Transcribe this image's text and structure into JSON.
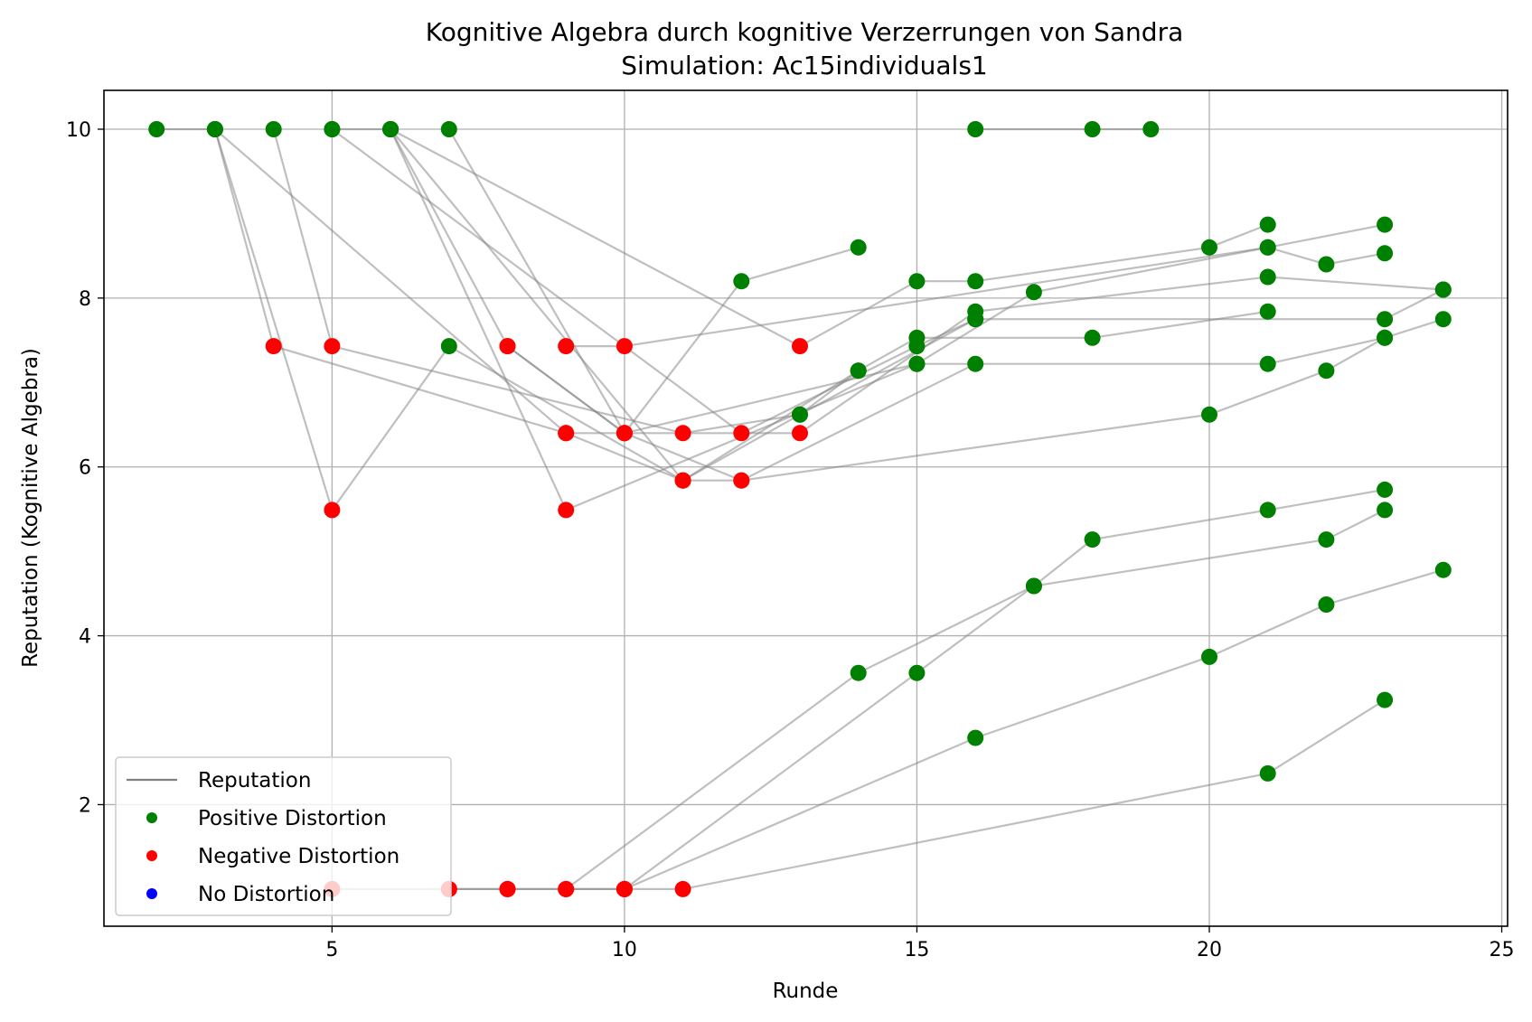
{
  "chart_data": {
    "type": "scatter",
    "title": "Kognitive Algebra durch kognitive Verzerrungen von Sandra",
    "subtitle": "Simulation: Ac15individuals1",
    "xlabel": "Runde",
    "ylabel": "Reputation (Kognitive Algebra)",
    "xlim": [
      1.1,
      25.1
    ],
    "ylim": [
      0.56,
      10.46
    ],
    "xticks": [
      5,
      10,
      15,
      20,
      25
    ],
    "yticks": [
      2,
      4,
      6,
      8,
      10
    ],
    "grid": true,
    "legend_position": "lower-left",
    "colors": {
      "reputation": "#808080",
      "positive": "#008000",
      "negative": "#ff0000",
      "none": "#0000ff",
      "grid": "#b0b0b0"
    },
    "legend": [
      {
        "label": "Reputation",
        "kind": "line",
        "color": "#808080"
      },
      {
        "label": "Positive Distortion",
        "kind": "dot",
        "color": "#008000"
      },
      {
        "label": "Negative Distortion",
        "kind": "dot",
        "color": "#ff0000"
      },
      {
        "label": "No Distortion",
        "kind": "dot",
        "color": "#0000ff"
      }
    ],
    "series": [
      {
        "points": [
          [
            2,
            10,
            "pos"
          ],
          [
            3,
            10,
            "pos"
          ],
          [
            4,
            7.43,
            "neg"
          ],
          [
            9,
            6.4,
            "neg"
          ],
          [
            11,
            5.84,
            "neg"
          ],
          [
            13,
            6.62,
            "pos"
          ],
          [
            14,
            7.14,
            "pos"
          ]
        ]
      },
      {
        "points": [
          [
            3,
            10,
            "pos"
          ],
          [
            5,
            5.49,
            "neg"
          ],
          [
            7,
            7.43,
            "pos"
          ],
          [
            11,
            5.84,
            "neg"
          ],
          [
            14,
            7.14,
            "pos"
          ],
          [
            15,
            7.53,
            "pos"
          ],
          [
            18,
            7.53,
            "pos"
          ],
          [
            21,
            7.84,
            "pos"
          ]
        ]
      },
      {
        "points": [
          [
            3,
            10,
            "pos"
          ],
          [
            9,
            6.4,
            "neg"
          ],
          [
            13,
            6.4,
            "neg"
          ],
          [
            16,
            7.84,
            "pos"
          ],
          [
            21,
            8.25,
            "pos"
          ],
          [
            24,
            8.1,
            "pos"
          ]
        ]
      },
      {
        "points": [
          [
            4,
            10,
            "pos"
          ],
          [
            5,
            7.43,
            "neg"
          ],
          [
            11,
            6.4,
            "neg"
          ],
          [
            13,
            6.62,
            "pos"
          ],
          [
            16,
            7.75,
            "pos"
          ],
          [
            23,
            7.75,
            "pos"
          ],
          [
            24,
            8.1,
            "pos"
          ]
        ]
      },
      {
        "points": [
          [
            5,
            10,
            "pos"
          ],
          [
            12,
            6.4,
            "neg"
          ],
          [
            15,
            7.43,
            "pos"
          ],
          [
            16,
            7.75,
            "pos"
          ]
        ]
      },
      {
        "points": [
          [
            5,
            10,
            "pos"
          ],
          [
            6,
            10,
            "pos"
          ],
          [
            13,
            7.43,
            "neg"
          ],
          [
            15,
            8.2,
            "pos"
          ],
          [
            16,
            8.2,
            "pos"
          ],
          [
            20,
            8.6,
            "pos"
          ],
          [
            21,
            8.87,
            "pos"
          ]
        ]
      },
      {
        "points": [
          [
            6,
            10,
            "pos"
          ],
          [
            8,
            7.43,
            "neg"
          ],
          [
            10,
            6.4,
            "neg"
          ],
          [
            12,
            8.2,
            "pos"
          ],
          [
            14,
            8.6,
            "pos"
          ]
        ]
      },
      {
        "points": [
          [
            6,
            10,
            "pos"
          ],
          [
            9,
            5.49,
            "neg"
          ],
          [
            15,
            7.22,
            "pos"
          ],
          [
            21,
            7.22,
            "pos"
          ],
          [
            23,
            7.53,
            "pos"
          ],
          [
            24,
            7.75,
            "pos"
          ]
        ]
      },
      {
        "points": [
          [
            6,
            10,
            "pos"
          ],
          [
            11,
            5.84,
            "neg"
          ],
          [
            12,
            5.84,
            "neg"
          ],
          [
            20,
            6.62,
            "pos"
          ],
          [
            22,
            7.14,
            "pos"
          ],
          [
            23,
            7.53,
            "pos"
          ]
        ]
      },
      {
        "points": [
          [
            7,
            10,
            "pos"
          ],
          [
            10,
            6.4,
            "neg"
          ],
          [
            12,
            5.84,
            "neg"
          ],
          [
            16,
            7.22,
            "pos"
          ]
        ]
      },
      {
        "points": [
          [
            8,
            7.43,
            "neg"
          ],
          [
            10,
            6.4,
            "neg"
          ],
          [
            15,
            7.22,
            "pos"
          ],
          [
            17,
            8.07,
            "pos"
          ],
          [
            21,
            8.6,
            "pos"
          ],
          [
            23,
            8.87,
            "pos"
          ]
        ]
      },
      {
        "points": [
          [
            9,
            7.43,
            "neg"
          ],
          [
            10,
            7.43,
            "neg"
          ],
          [
            21,
            8.6,
            "pos"
          ],
          [
            22,
            8.4,
            "pos"
          ],
          [
            23,
            8.53,
            "pos"
          ]
        ]
      },
      {
        "points": [
          [
            16,
            10,
            "pos"
          ],
          [
            18,
            10,
            "pos"
          ],
          [
            19,
            10,
            "pos"
          ]
        ]
      },
      {
        "points": [
          [
            5,
            1,
            "neg"
          ],
          [
            7,
            1,
            "neg"
          ],
          [
            8,
            1,
            "neg"
          ],
          [
            9,
            1,
            "neg"
          ],
          [
            14,
            3.56,
            "pos"
          ],
          [
            17,
            4.59,
            "pos"
          ],
          [
            18,
            5.14,
            "pos"
          ],
          [
            21,
            5.49,
            "pos"
          ],
          [
            23,
            5.73,
            "pos"
          ]
        ]
      },
      {
        "points": [
          [
            7,
            1,
            "neg"
          ],
          [
            8,
            1,
            "neg"
          ],
          [
            10,
            1,
            "neg"
          ],
          [
            15,
            3.56,
            "pos"
          ],
          [
            17,
            4.59,
            "pos"
          ],
          [
            22,
            5.14,
            "pos"
          ],
          [
            23,
            5.49,
            "pos"
          ]
        ]
      },
      {
        "points": [
          [
            9,
            1,
            "neg"
          ],
          [
            10,
            1,
            "neg"
          ],
          [
            16,
            2.79,
            "pos"
          ],
          [
            20,
            3.75,
            "pos"
          ],
          [
            22,
            4.37,
            "pos"
          ],
          [
            24,
            4.78,
            "pos"
          ]
        ]
      },
      {
        "points": [
          [
            10,
            1,
            "neg"
          ],
          [
            11,
            1,
            "neg"
          ],
          [
            21,
            2.37,
            "pos"
          ],
          [
            23,
            3.24,
            "pos"
          ]
        ]
      }
    ]
  }
}
